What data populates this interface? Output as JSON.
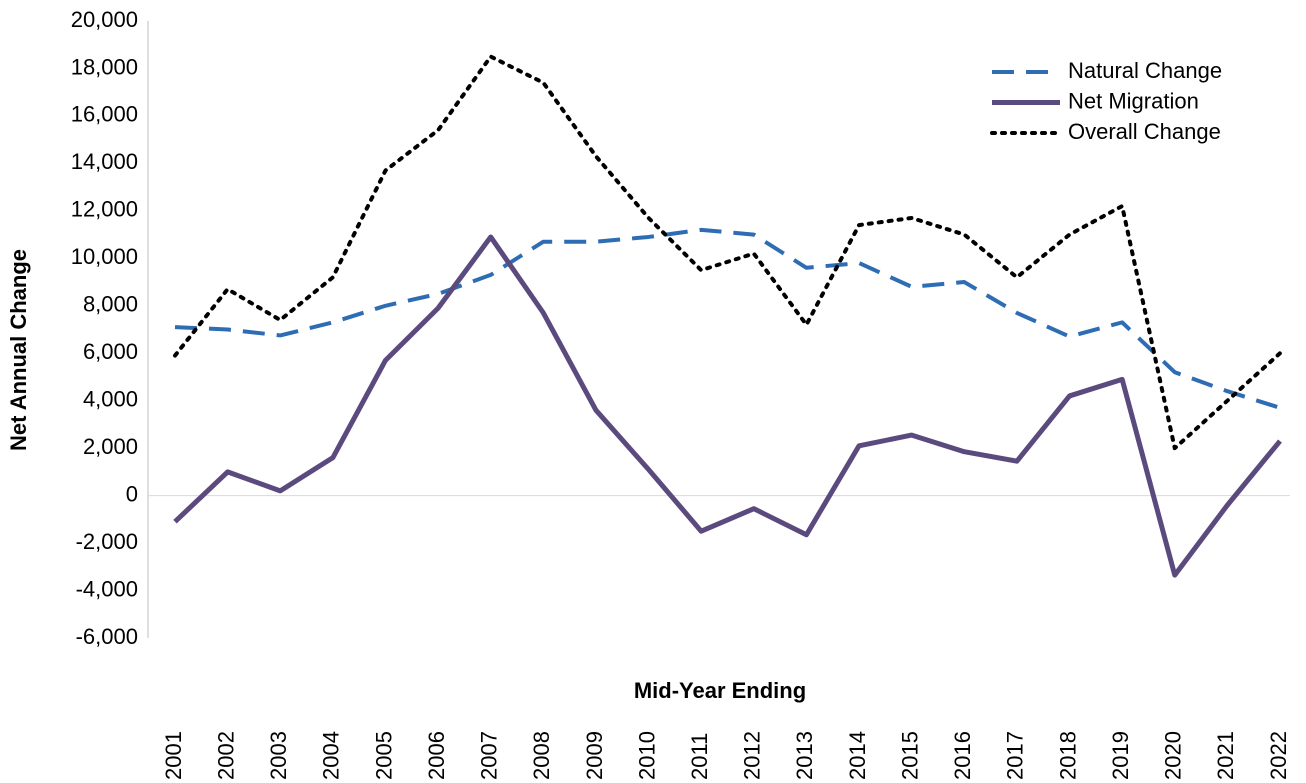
{
  "chart_data": {
    "type": "line",
    "x_label": "Mid-Year Ending",
    "y_label": "Net Annual Change",
    "categories": [
      "2001",
      "2002",
      "2003",
      "2004",
      "2005",
      "2006",
      "2007",
      "2008",
      "2009",
      "2010",
      "2011",
      "2012",
      "2013",
      "2014",
      "2015",
      "2016",
      "2017",
      "2018",
      "2019",
      "2020",
      "2021",
      "2022"
    ],
    "series": [
      {
        "name": "Natural Change",
        "color": "#2e6db4",
        "style": "dashed",
        "values": [
          7100,
          7000,
          6750,
          7300,
          8000,
          8500,
          9300,
          10700,
          10700,
          10900,
          11200,
          11000,
          9600,
          9800,
          8800,
          9000,
          7700,
          6700,
          7300,
          5200,
          4400,
          3700
        ]
      },
      {
        "name": "Net Migration",
        "color": "#5b4a7e",
        "style": "solid",
        "values": [
          -1100,
          1000,
          200,
          1600,
          5700,
          7900,
          10900,
          7700,
          3600,
          1100,
          -1500,
          -550,
          -1650,
          2100,
          2550,
          1850,
          1450,
          4200,
          4900,
          -3350,
          -400,
          2300
        ]
      },
      {
        "name": "Overall Change",
        "color": "#000000",
        "style": "dotted",
        "values": [
          5900,
          8700,
          7400,
          9200,
          13700,
          15400,
          18500,
          17400,
          14300,
          11700,
          9500,
          10200,
          7200,
          11400,
          11700,
          11000,
          9200,
          11000,
          12200,
          2000,
          4000,
          6000
        ]
      }
    ],
    "ylim": [
      -6000,
      20000
    ],
    "yticks": [
      {
        "value": -6000,
        "label": "-6,000"
      },
      {
        "value": -4000,
        "label": "-4,000"
      },
      {
        "value": -2000,
        "label": "-2,000"
      },
      0,
      {
        "value": 2000,
        "label": "2,000"
      },
      {
        "value": 4000,
        "label": "4,000"
      },
      {
        "value": 6000,
        "label": "6,000"
      },
      {
        "value": 8000,
        "label": "8,000"
      },
      {
        "value": 10000,
        "label": "10,000"
      },
      {
        "value": 12000,
        "label": "12,000"
      },
      {
        "value": 14000,
        "label": "14,000"
      },
      {
        "value": 16000,
        "label": "16,000"
      },
      {
        "value": 18000,
        "label": "18,000"
      },
      {
        "value": 20000,
        "label": "20,000"
      }
    ],
    "legend": "top-right"
  }
}
